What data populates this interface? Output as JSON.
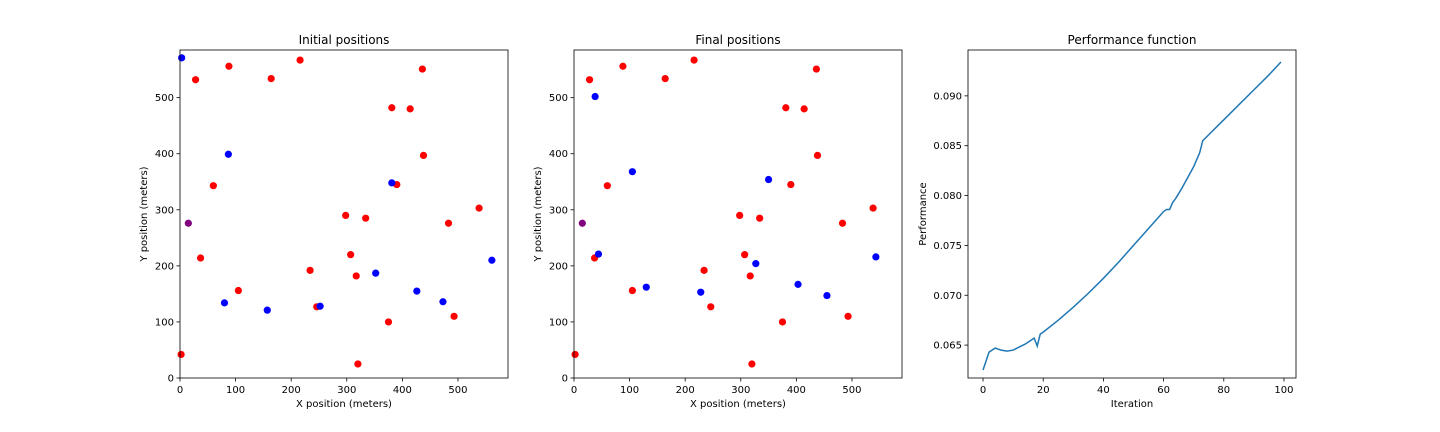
{
  "colors": {
    "red": "#ff0000",
    "blue": "#0000ff",
    "purple": "#800080",
    "line": "#1f77b4"
  },
  "chart_data": [
    {
      "type": "scatter",
      "title": "Initial positions",
      "xlabel": "X position (meters)",
      "ylabel": "Y position (meters)",
      "xlim": [
        0,
        590
      ],
      "ylim": [
        0,
        585
      ],
      "xticks": [
        0,
        100,
        200,
        300,
        400,
        500
      ],
      "yticks": [
        0,
        100,
        200,
        300,
        400,
        500
      ],
      "grid": false,
      "series": [
        {
          "color": "red",
          "points": [
            [
              2,
              42
            ],
            [
              28,
              532
            ],
            [
              37,
              214
            ],
            [
              60,
              343
            ],
            [
              88,
              556
            ],
            [
              105,
              156
            ],
            [
              164,
              534
            ],
            [
              216,
              567
            ],
            [
              234,
              192
            ],
            [
              246,
              127
            ],
            [
              298,
              290
            ],
            [
              307,
              220
            ],
            [
              317,
              182
            ],
            [
              320,
              25
            ],
            [
              334,
              285
            ],
            [
              375,
              100
            ],
            [
              381,
              482
            ],
            [
              390,
              345
            ],
            [
              414,
              480
            ],
            [
              436,
              551
            ],
            [
              438,
              397
            ],
            [
              483,
              276
            ],
            [
              493,
              110
            ],
            [
              538,
              303
            ]
          ]
        },
        {
          "color": "blue",
          "points": [
            [
              3,
              571
            ],
            [
              80,
              134
            ],
            [
              87,
              399
            ],
            [
              157,
              121
            ],
            [
              252,
              128
            ],
            [
              352,
              187
            ],
            [
              381,
              348
            ],
            [
              426,
              155
            ],
            [
              473,
              136
            ],
            [
              561,
              210
            ]
          ]
        },
        {
          "color": "purple",
          "points": [
            [
              15,
              276
            ]
          ]
        }
      ]
    },
    {
      "type": "scatter",
      "title": "Final positions",
      "xlabel": "X position (meters)",
      "ylabel": "Y position (meters)",
      "xlim": [
        0,
        590
      ],
      "ylim": [
        0,
        585
      ],
      "xticks": [
        0,
        100,
        200,
        300,
        400,
        500
      ],
      "yticks": [
        0,
        100,
        200,
        300,
        400,
        500
      ],
      "grid": false,
      "series": [
        {
          "color": "red",
          "points": [
            [
              2,
              42
            ],
            [
              28,
              532
            ],
            [
              37,
              214
            ],
            [
              60,
              343
            ],
            [
              88,
              556
            ],
            [
              105,
              156
            ],
            [
              164,
              534
            ],
            [
              216,
              567
            ],
            [
              234,
              192
            ],
            [
              246,
              127
            ],
            [
              298,
              290
            ],
            [
              307,
              220
            ],
            [
              317,
              182
            ],
            [
              320,
              25
            ],
            [
              334,
              285
            ],
            [
              375,
              100
            ],
            [
              381,
              482
            ],
            [
              390,
              345
            ],
            [
              414,
              480
            ],
            [
              436,
              551
            ],
            [
              438,
              397
            ],
            [
              483,
              276
            ],
            [
              493,
              110
            ],
            [
              538,
              303
            ]
          ]
        },
        {
          "color": "blue",
          "points": [
            [
              38,
              502
            ],
            [
              44,
              221
            ],
            [
              105,
              368
            ],
            [
              130,
              162
            ],
            [
              228,
              153
            ],
            [
              327,
              204
            ],
            [
              350,
              354
            ],
            [
              403,
              167
            ],
            [
              455,
              147
            ],
            [
              543,
              216
            ]
          ]
        },
        {
          "color": "purple",
          "points": [
            [
              15,
              276
            ]
          ]
        }
      ]
    },
    {
      "type": "line",
      "title": "Performance function",
      "xlabel": "Iteration",
      "ylabel": "Performance",
      "xlim": [
        -5,
        104
      ],
      "ylim": [
        0.0617,
        0.0946
      ],
      "xticks": [
        0,
        20,
        40,
        60,
        80,
        100
      ],
      "yticks": [
        0.065,
        0.07,
        0.075,
        0.08,
        0.085,
        0.09
      ],
      "ytick_labels": [
        "0.065",
        "0.070",
        "0.075",
        "0.080",
        "0.085",
        "0.090"
      ],
      "grid": false,
      "series": [
        {
          "color": "line",
          "x": [
            0,
            2,
            4,
            6,
            8,
            10,
            12,
            14,
            16,
            17,
            18,
            19,
            20,
            25,
            30,
            35,
            40,
            45,
            50,
            55,
            60,
            61,
            62,
            63,
            64,
            66,
            68,
            70,
            72,
            73,
            76,
            80,
            85,
            90,
            95,
            99
          ],
          "y": [
            0.0625,
            0.0643,
            0.0647,
            0.0645,
            0.0644,
            0.0645,
            0.0648,
            0.0651,
            0.0655,
            0.0657,
            0.0649,
            0.0661,
            0.0663,
            0.0675,
            0.0688,
            0.0702,
            0.0717,
            0.0733,
            0.075,
            0.0767,
            0.0784,
            0.0786,
            0.0786,
            0.0793,
            0.0797,
            0.0807,
            0.0818,
            0.0829,
            0.0843,
            0.0855,
            0.0864,
            0.0876,
            0.0891,
            0.0906,
            0.0921,
            0.0934
          ]
        }
      ]
    }
  ]
}
